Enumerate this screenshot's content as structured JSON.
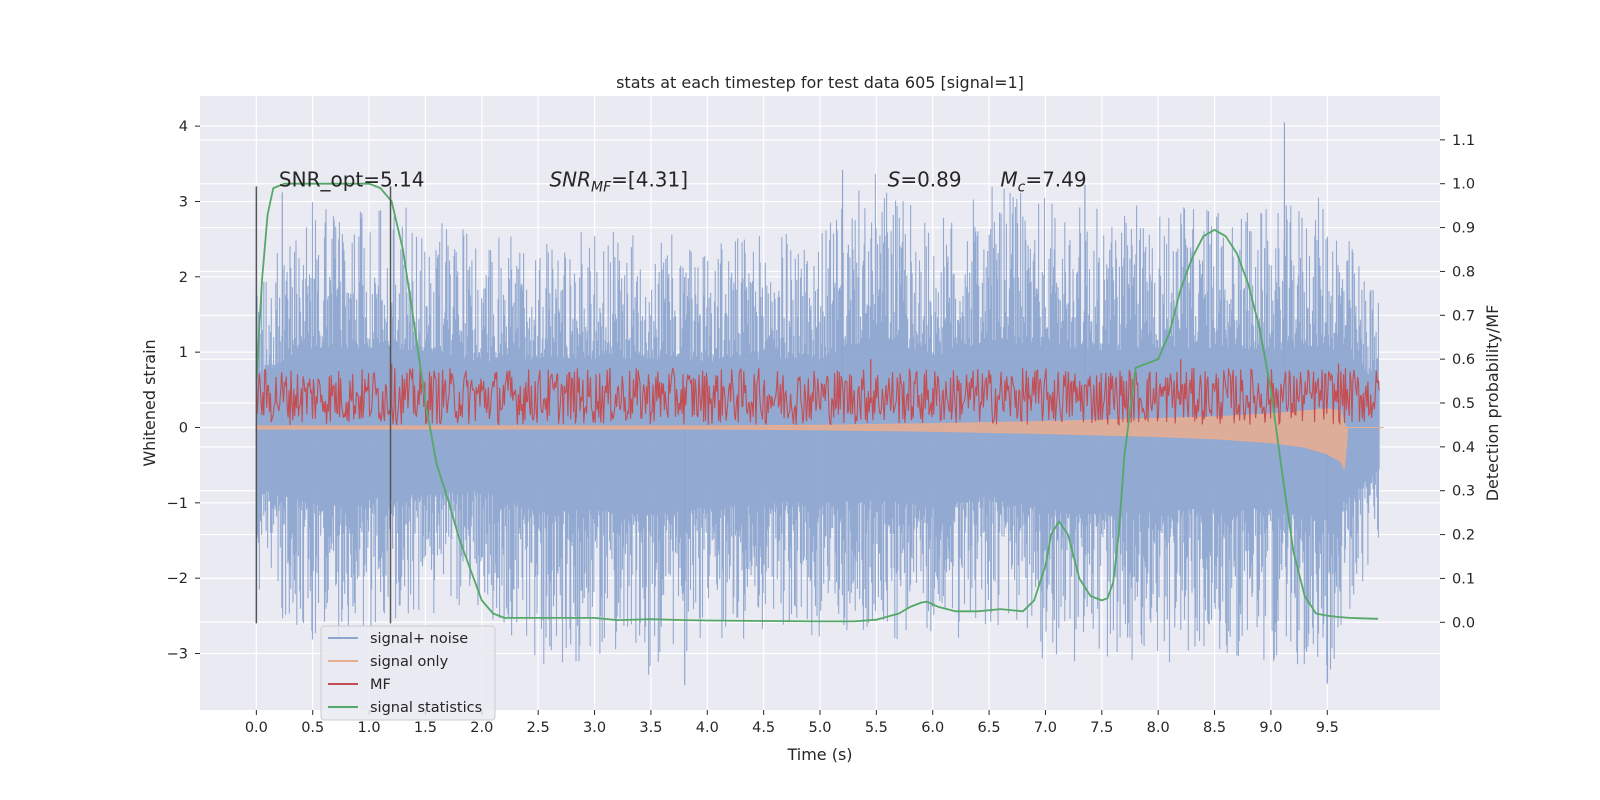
{
  "chart_data": {
    "type": "line",
    "title": "stats at each timestep for test data 605 [signal=1]",
    "xlabel": "Time (s)",
    "ylabel": "Whitened strain",
    "y2label": "Detection probability/MF",
    "xlim": [
      -0.5,
      10.5
    ],
    "ylim": [
      -3.75,
      4.4
    ],
    "y2lim": [
      -0.2,
      1.2
    ],
    "x_ticks": [
      0.0,
      0.5,
      1.0,
      1.5,
      2.0,
      2.5,
      3.0,
      3.5,
      4.0,
      4.5,
      5.0,
      5.5,
      6.0,
      6.5,
      7.0,
      7.5,
      8.0,
      8.5,
      9.0,
      9.5
    ],
    "x_tick_labels": [
      "0.0",
      "0.5",
      "1.0",
      "1.5",
      "2.0",
      "2.5",
      "3.0",
      "3.5",
      "4.0",
      "4.5",
      "5.0",
      "5.5",
      "6.0",
      "6.5",
      "7.0",
      "7.5",
      "8.0",
      "8.5",
      "9.0",
      "9.5"
    ],
    "y_ticks": [
      -3,
      -2,
      -1,
      0,
      1,
      2,
      3,
      4
    ],
    "y_tick_labels": [
      "−3",
      "−2",
      "−1",
      "0",
      "1",
      "2",
      "3",
      "4"
    ],
    "y2_ticks": [
      0.0,
      0.1,
      0.2,
      0.3,
      0.4,
      0.5,
      0.6,
      0.7,
      0.8,
      0.9,
      1.0,
      1.1
    ],
    "y2_tick_labels": [
      "0.0",
      "0.1",
      "0.2",
      "0.3",
      "0.4",
      "0.5",
      "0.6",
      "0.7",
      "0.8",
      "0.9",
      "1.0",
      "1.1"
    ],
    "grid": true,
    "legend_position": "lower-left",
    "annotations": [
      {
        "id": "snr_opt",
        "text": "SNR_opt=5.14",
        "x": 0.2,
        "y": 3.2
      },
      {
        "id": "snr_mf",
        "text_main": "SNR",
        "text_sub": "MF",
        "text_rest": "=[4.31]",
        "x": 2.6,
        "y": 3.2
      },
      {
        "id": "s_value",
        "text_main": "S",
        "text_rest": "=0.89",
        "x": 5.6,
        "y": 3.2
      },
      {
        "id": "mc_value",
        "text_main": "M",
        "text_sub": "c",
        "text_rest": "=7.49",
        "x": 6.6,
        "y": 3.2
      }
    ],
    "vlines": [
      {
        "x": 0.0,
        "ymin": -2.6,
        "ymax": 3.2
      },
      {
        "x": 1.19,
        "ymin": -2.6,
        "ymax": 3.2
      }
    ],
    "series": [
      {
        "name": "signal+ noise",
        "color": "#8da5cf",
        "axis": "left",
        "envelope": {
          "x": [
            0.0,
            0.5,
            1.0,
            1.5,
            2.0,
            2.5,
            3.0,
            3.5,
            4.0,
            4.5,
            5.0,
            5.5,
            6.0,
            6.5,
            7.0,
            7.5,
            8.0,
            8.5,
            9.0,
            9.5,
            10.0
          ],
          "upper": [
            2.0,
            3.0,
            3.0,
            2.9,
            2.5,
            2.6,
            2.6,
            2.6,
            2.5,
            2.6,
            2.6,
            3.4,
            2.7,
            3.2,
            3.1,
            2.9,
            3.0,
            3.0,
            2.9,
            3.1,
            1.6
          ],
          "lower": [
            -2.3,
            -2.9,
            -2.7,
            -2.5,
            -2.4,
            -3.2,
            -3.1,
            -3.3,
            -3.0,
            -2.7,
            -2.8,
            -2.7,
            -3.0,
            -2.6,
            -3.1,
            -3.2,
            -3.2,
            -3.0,
            -3.1,
            -3.4,
            -1.4
          ]
        },
        "x_range": [
          0.0,
          9.96
        ],
        "extremes": [
          {
            "x": 9.12,
            "y": 4.05
          },
          {
            "x": 0.23,
            "y": 3.12
          },
          {
            "x": 5.2,
            "y": 3.42
          },
          {
            "x": 7.35,
            "y": 3.22
          },
          {
            "x": 9.5,
            "y": -3.4
          },
          {
            "x": 3.8,
            "y": -3.42
          }
        ]
      },
      {
        "name": "signal only",
        "color": "#e5ad93",
        "axis": "left",
        "x": [
          0.0,
          4.0,
          5.0,
          6.0,
          7.0,
          8.0,
          8.5,
          9.0,
          9.3,
          9.5,
          9.62,
          9.65,
          9.67,
          9.68,
          10.0
        ],
        "upper": [
          0.02,
          0.02,
          0.03,
          0.05,
          0.08,
          0.12,
          0.14,
          0.18,
          0.22,
          0.25,
          0.22,
          0.05,
          0.0,
          0.0,
          0.0
        ],
        "lower": [
          -0.02,
          -0.02,
          -0.03,
          -0.05,
          -0.08,
          -0.12,
          -0.15,
          -0.2,
          -0.26,
          -0.35,
          -0.45,
          -0.55,
          -0.25,
          0.0,
          0.0
        ]
      },
      {
        "name": "MF",
        "color": "#c44e52",
        "axis": "right",
        "base": 0.5,
        "band": [
          0.45,
          0.58
        ],
        "x_range": [
          0.0,
          9.96
        ],
        "extremes": [
          {
            "x": 1.2,
            "y": 0.59
          },
          {
            "x": 5.45,
            "y": 0.6
          },
          {
            "x": 8.2,
            "y": 0.6
          },
          {
            "x": 9.6,
            "y": 0.59
          }
        ]
      },
      {
        "name": "signal statistics",
        "color": "#55a868",
        "axis": "right",
        "x": [
          0.0,
          0.05,
          0.1,
          0.15,
          0.25,
          0.4,
          0.6,
          0.8,
          1.0,
          1.1,
          1.2,
          1.3,
          1.4,
          1.5,
          1.6,
          1.7,
          1.8,
          1.9,
          2.0,
          2.1,
          2.2,
          2.4,
          2.6,
          2.8,
          3.0,
          3.2,
          3.5,
          3.8,
          4.0,
          4.5,
          5.0,
          5.3,
          5.5,
          5.7,
          5.8,
          5.9,
          5.95,
          6.05,
          6.2,
          6.4,
          6.6,
          6.8,
          6.9,
          7.0,
          7.05,
          7.12,
          7.2,
          7.3,
          7.4,
          7.5,
          7.55,
          7.6,
          7.65,
          7.7,
          7.8,
          7.9,
          8.0,
          8.1,
          8.2,
          8.3,
          8.4,
          8.5,
          8.6,
          8.7,
          8.8,
          8.9,
          9.0,
          9.1,
          9.2,
          9.3,
          9.4,
          9.5,
          9.6,
          9.7,
          9.8,
          9.95
        ],
        "y": [
          0.55,
          0.78,
          0.93,
          0.99,
          1.0,
          1.0,
          1.0,
          1.0,
          1.0,
          0.99,
          0.96,
          0.85,
          0.68,
          0.5,
          0.36,
          0.28,
          0.19,
          0.12,
          0.05,
          0.02,
          0.01,
          0.01,
          0.01,
          0.01,
          0.01,
          0.005,
          0.007,
          0.005,
          0.004,
          0.003,
          0.002,
          0.002,
          0.006,
          0.02,
          0.035,
          0.045,
          0.047,
          0.035,
          0.025,
          0.025,
          0.03,
          0.025,
          0.05,
          0.13,
          0.2,
          0.23,
          0.2,
          0.1,
          0.06,
          0.05,
          0.055,
          0.09,
          0.2,
          0.38,
          0.58,
          0.59,
          0.6,
          0.66,
          0.76,
          0.83,
          0.88,
          0.895,
          0.88,
          0.84,
          0.77,
          0.67,
          0.53,
          0.34,
          0.16,
          0.06,
          0.02,
          0.015,
          0.012,
          0.01,
          0.009,
          0.008
        ]
      }
    ]
  }
}
